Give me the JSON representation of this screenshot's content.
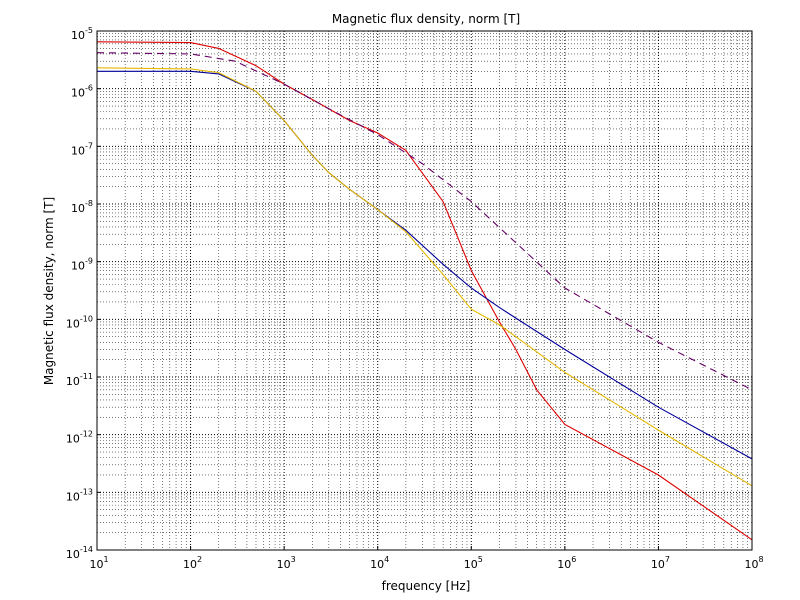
{
  "chart_data": {
    "type": "line",
    "title": "Magnetic flux density, norm [T]",
    "xlabel": "frequency [Hz]",
    "ylabel": "Magnetic flux density, norm [T]",
    "x_scale": "log",
    "y_scale": "log",
    "xlim": [
      10,
      100000000
    ],
    "ylim": [
      1e-14,
      1e-05
    ],
    "grid": true,
    "x_ticks": [
      {
        "base": "10",
        "exp": "1",
        "value": 10.0
      },
      {
        "base": "10",
        "exp": "2",
        "value": 100.0
      },
      {
        "base": "10",
        "exp": "3",
        "value": 1000.0
      },
      {
        "base": "10",
        "exp": "4",
        "value": 10000.0
      },
      {
        "base": "10",
        "exp": "5",
        "value": 100000.0
      },
      {
        "base": "10",
        "exp": "6",
        "value": 1000000.0
      },
      {
        "base": "10",
        "exp": "7",
        "value": 10000000.0
      },
      {
        "base": "10",
        "exp": "8",
        "value": 100000000.0
      }
    ],
    "y_ticks": [
      {
        "base": "10",
        "exp": "-5",
        "value": 1e-05
      },
      {
        "base": "10",
        "exp": "-6",
        "value": 1e-06
      },
      {
        "base": "10",
        "exp": "-7",
        "value": 1e-07
      },
      {
        "base": "10",
        "exp": "-8",
        "value": 1e-08
      },
      {
        "base": "10",
        "exp": "-9",
        "value": 1e-09
      },
      {
        "base": "10",
        "exp": "-10",
        "value": 1e-10
      },
      {
        "base": "10",
        "exp": "-11",
        "value": 1e-11
      },
      {
        "base": "10",
        "exp": "-12",
        "value": 1e-12
      },
      {
        "base": "10",
        "exp": "-13",
        "value": 1e-13
      },
      {
        "base": "10",
        "exp": "-14",
        "value": 1e-14
      }
    ],
    "series": [
      {
        "color": "#dd0000",
        "style": "solid",
        "x": [
          10,
          100,
          200,
          500,
          1000,
          2000,
          5000,
          10000,
          20000,
          50000,
          100000,
          200000,
          300000,
          500000,
          1000000,
          10000000,
          100000000
        ],
        "y": [
          6.5e-06,
          6.3e-06,
          5e-06,
          2.5e-06,
          1.2e-06,
          6.5e-07,
          2.8e-07,
          1.7e-07,
          8.5e-08,
          1.1e-08,
          7e-10,
          9e-11,
          3e-11,
          6e-12,
          1.5e-12,
          2e-13,
          1.5e-14
        ]
      },
      {
        "color": "#660066",
        "style": "dashed",
        "x": [
          10,
          100,
          300,
          1000,
          3000,
          10000,
          30000,
          100000,
          1000000,
          10000000,
          100000000
        ],
        "y": [
          4.2e-06,
          4e-06,
          3e-06,
          1.2e-06,
          4.5e-07,
          1.6e-07,
          5e-08,
          1.1e-08,
          3.5e-10,
          4e-11,
          6e-12
        ]
      },
      {
        "color": "#000099",
        "style": "solid",
        "x": [
          10,
          100,
          200,
          500,
          1000,
          2000,
          3000,
          5000,
          10000,
          20000,
          50000,
          100000,
          200000,
          1000000,
          10000000,
          100000000
        ],
        "y": [
          2e-06,
          2e-06,
          1.8e-06,
          9e-07,
          2.8e-07,
          7e-08,
          3.5e-08,
          1.8e-08,
          8e-09,
          3.5e-09,
          9e-10,
          3.5e-10,
          1.6e-10,
          3e-11,
          3e-12,
          3.8e-13
        ]
      },
      {
        "color": "#e6b800",
        "style": "solid",
        "x": [
          10,
          100,
          200,
          500,
          1000,
          2000,
          3000,
          5000,
          10000,
          20000,
          50000,
          100000,
          200000,
          300000,
          1000000,
          10000000,
          100000000
        ],
        "y": [
          2.3e-06,
          2.2e-06,
          1.9e-06,
          9e-07,
          2.8e-07,
          7e-08,
          3.5e-08,
          1.8e-08,
          8e-09,
          3.3e-09,
          6e-10,
          1.5e-10,
          8e-11,
          5e-11,
          1.2e-11,
          1.2e-12,
          1.3e-13
        ]
      }
    ]
  }
}
